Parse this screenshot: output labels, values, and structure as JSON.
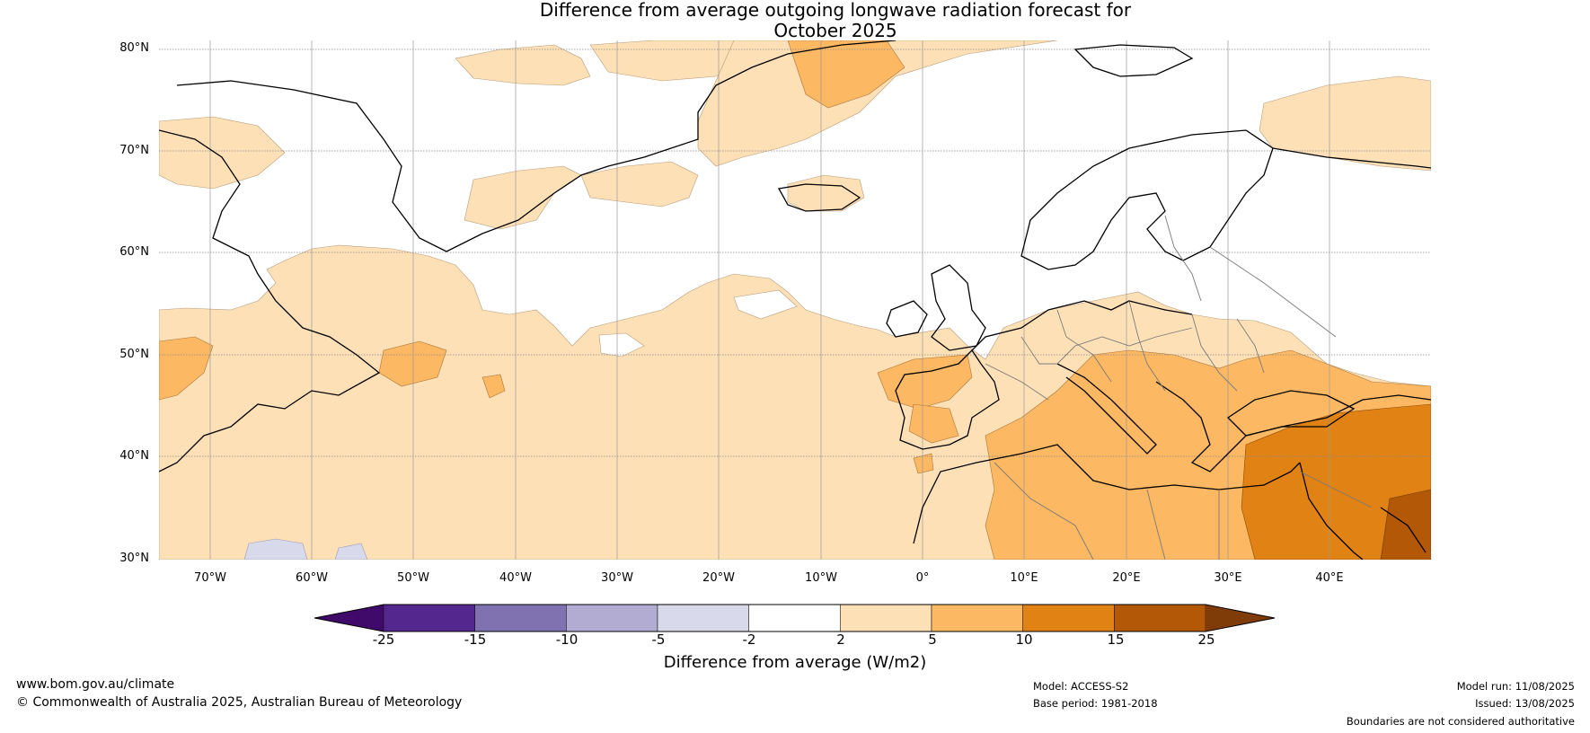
{
  "title_line1": "Difference from average outgoing longwave radiation forecast for",
  "title_line2": "October 2025",
  "lat_labels": [
    "80°N",
    "70°N",
    "60°N",
    "50°N",
    "40°N",
    "30°N"
  ],
  "lon_labels": [
    "70°W",
    "60°W",
    "50°W",
    "40°W",
    "30°W",
    "20°W",
    "10°W",
    "0°",
    "10°E",
    "20°E",
    "30°E",
    "40°E"
  ],
  "colorbar": {
    "ticks": [
      "-25",
      "-15",
      "-10",
      "-5",
      "-2",
      "2",
      "5",
      "10",
      "15",
      "25"
    ],
    "colors": [
      "#3f0a6a",
      "#54278f",
      "#8072b0",
      "#b2abd2",
      "#d8daeb",
      "#ffffff",
      "#fee0b6",
      "#fdb863",
      "#e08214",
      "#b35806",
      "#7f3b08"
    ],
    "label": "Difference from average (W/m2)"
  },
  "footer": {
    "url": "www.bom.gov.au/climate",
    "copyright": "© Commonwealth of Australia 2025, Australian Bureau of Meteorology",
    "model": "Model: ACCESS-S2",
    "base_period": "Base period: 1981-2018",
    "model_run": "Model run: 11/08/2025",
    "issued": "Issued: 13/08/2025",
    "disclaimer": "Boundaries are not considered authoritative"
  }
}
